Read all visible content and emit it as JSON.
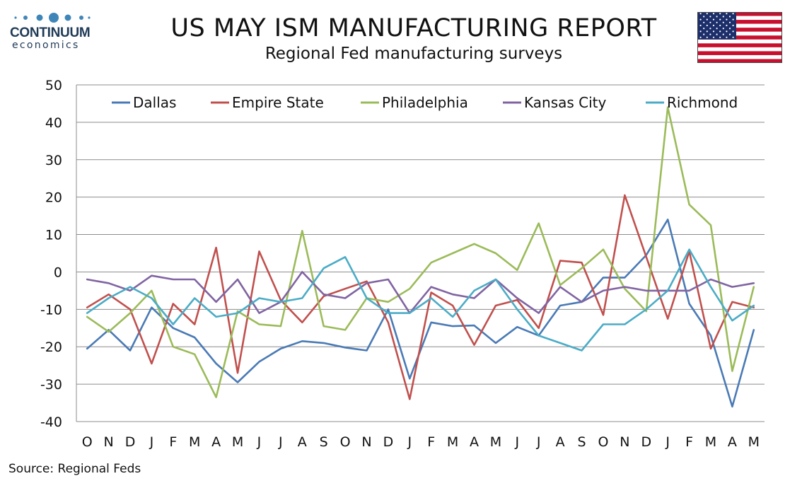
{
  "header": {
    "logo_name": "CONTINUUM",
    "logo_sub": "economics",
    "title": "US MAY ISM MANUFACTURING REPORT",
    "subtitle": "Regional Fed manufacturing surveys",
    "flag_icon": "us-flag-icon"
  },
  "footer": {
    "source": "Source: Regional Feds"
  },
  "chart_data": {
    "type": "line",
    "ylim": [
      -40,
      50
    ],
    "yticks": [
      50,
      40,
      30,
      20,
      10,
      0,
      -10,
      -20,
      -30,
      -40
    ],
    "grid": true,
    "legend_position": "top",
    "categories": [
      "O",
      "N",
      "D",
      "J",
      "F",
      "M",
      "A",
      "M",
      "J",
      "J",
      "A",
      "S",
      "O",
      "N",
      "D",
      "J",
      "F",
      "M",
      "A",
      "M",
      "J",
      "J",
      "A",
      "S",
      "O",
      "N",
      "D",
      "J",
      "F",
      "M",
      "A",
      "M"
    ],
    "series": [
      {
        "name": "Dallas",
        "color": "#4a7ab5",
        "values": [
          -20.5,
          -15.5,
          -21,
          -9.5,
          -15,
          -17.5,
          -24.5,
          -29.5,
          -24,
          -20.5,
          -18.5,
          -19,
          -20.2,
          -21,
          -10,
          -28.5,
          -13.5,
          -14.5,
          -14.3,
          -19,
          -14.7,
          -17,
          -9,
          -8,
          -1.5,
          -1.5,
          4.5,
          14,
          -8.5,
          -17,
          -36,
          -15.5
        ]
      },
      {
        "name": "Empire State",
        "color": "#c0504d",
        "values": [
          -9.5,
          -6,
          -10,
          -24.5,
          -8.5,
          -14,
          6.5,
          -27,
          5.5,
          -7.5,
          -13.5,
          -6.5,
          -4.5,
          -2.5,
          -13.5,
          -34,
          -5.5,
          -9,
          -19.5,
          -9,
          -7.5,
          -15,
          3,
          2.5,
          -11.5,
          20.5,
          4,
          -12.5,
          5.5,
          -20.5,
          -8,
          -9.5
        ]
      },
      {
        "name": "Philadelphia",
        "color": "#9bbb59",
        "values": [
          -12,
          -16,
          -11,
          -5,
          -20,
          -22,
          -33.5,
          -10.5,
          -14,
          -14.5,
          11,
          -14.5,
          -15.5,
          -7,
          -8,
          -4.5,
          2.5,
          5,
          7.5,
          5,
          0.5,
          13,
          -3.5,
          1,
          6,
          -4.5,
          -10.5,
          44,
          18,
          12.5,
          -26.5,
          -4
        ]
      },
      {
        "name": "Kansas City",
        "color": "#8064a2",
        "values": [
          -2,
          -3,
          -5,
          -1,
          -2,
          -2,
          -8,
          -2,
          -11,
          -8,
          0,
          -6,
          -7,
          -3,
          -2,
          -11,
          -4,
          -6,
          -7,
          -2,
          -7,
          -11,
          -4,
          -8,
          -5,
          -4,
          -5,
          -5,
          -5,
          -2,
          -4,
          -3
        ]
      },
      {
        "name": "Richmond",
        "color": "#4bacc6",
        "values": [
          -11,
          -7,
          -4,
          -7,
          -14,
          -7,
          -12,
          -11,
          -7,
          -8,
          -7,
          1,
          4,
          -7,
          -11,
          -11,
          -7,
          -12,
          -5,
          -2,
          -10,
          -17,
          -19,
          -21,
          -14,
          -14,
          -10,
          -5,
          6,
          -4,
          -13,
          -9
        ]
      }
    ]
  }
}
